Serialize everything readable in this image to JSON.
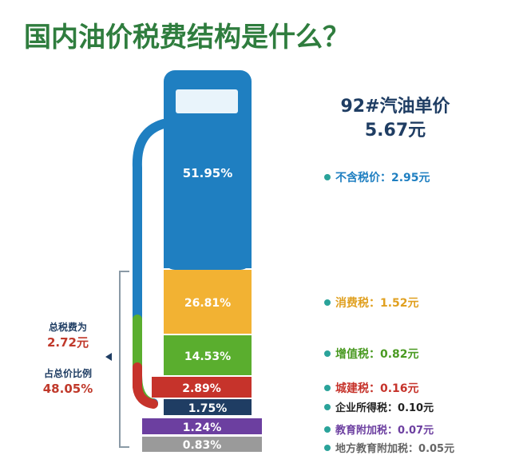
{
  "chart_data": {
    "type": "bar",
    "title": "国内油价税费结构是什么？",
    "price_label": "92#汽油单价",
    "price_value": "5.67元",
    "total_tax_label": "总税费为",
    "total_tax_value": "2.72元",
    "share_label": "占总价比例",
    "share_value": "48.05%",
    "colors": {
      "title": "#2f7d3e",
      "pump": "#1f7fc1",
      "pump_window": "#e9f4fb",
      "bracket": "#8a9aa6",
      "total_tax": "#c0392b"
    },
    "segments": [
      {
        "category": "不含税价",
        "value": 2.95,
        "value_label": "2.95元",
        "percent": 51.95,
        "percent_label": "51.95%",
        "color": "#1f7fc1",
        "label_color": "#1f7fc1"
      },
      {
        "category": "消费税",
        "value": 1.52,
        "value_label": "1.52元",
        "percent": 26.81,
        "percent_label": "26.81%",
        "color": "#f2b233",
        "label_color": "#e0a020"
      },
      {
        "category": "增值税",
        "value": 0.82,
        "value_label": "0.82元",
        "percent": 14.53,
        "percent_label": "14.53%",
        "color": "#5aae2e",
        "label_color": "#4a9a22"
      },
      {
        "category": "城建税",
        "value": 0.16,
        "value_label": "0.16元",
        "percent": 2.89,
        "percent_label": "2.89%",
        "color": "#c6332b",
        "label_color": "#c6332b"
      },
      {
        "category": "企业所得税",
        "value": 0.1,
        "value_label": "0.10元",
        "percent": 1.75,
        "percent_label": "1.75%",
        "color": "#1f3d63",
        "label_color": "#222222"
      },
      {
        "category": "教育附加税",
        "value": 0.07,
        "value_label": "0.07元",
        "percent": 1.24,
        "percent_label": "1.24%",
        "color": "#6c3fa0",
        "label_color": "#6c3fa0"
      },
      {
        "category": "地方教育附加税",
        "value": 0.05,
        "value_label": "0.05元",
        "percent": 0.83,
        "percent_label": "0.83%",
        "color": "#9a9a9a",
        "label_color": "#666666"
      }
    ]
  }
}
